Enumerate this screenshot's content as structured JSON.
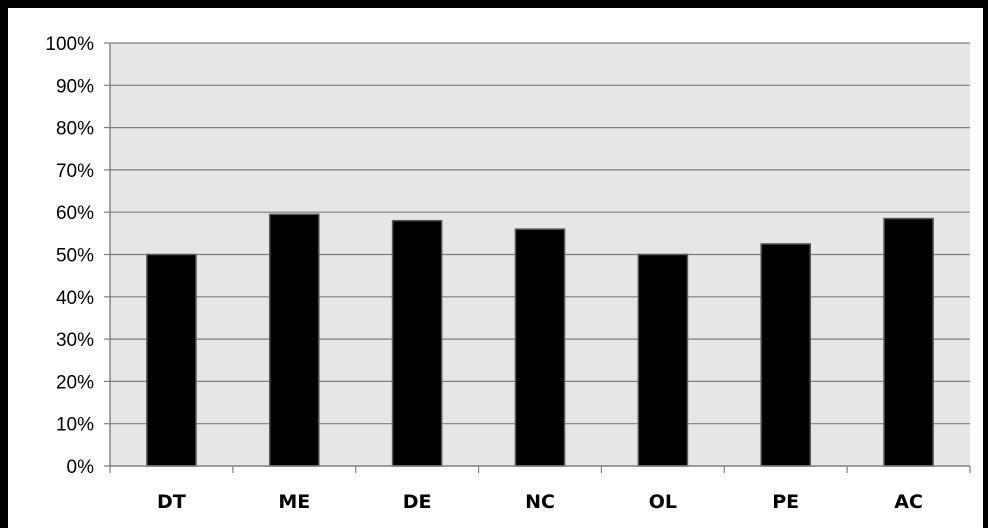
{
  "chart_data": {
    "type": "bar",
    "categories": [
      "DT",
      "ME",
      "DE",
      "NC",
      "OL",
      "PE",
      "AC"
    ],
    "values": [
      50,
      59.5,
      58,
      56,
      50,
      52.5,
      58.5
    ],
    "y_ticks": [
      "0%",
      "10%",
      "20%",
      "30%",
      "40%",
      "50%",
      "60%",
      "70%",
      "80%",
      "90%",
      "100%"
    ],
    "ylim": [
      0,
      100
    ],
    "grid": true,
    "legend": "none",
    "title": "",
    "xlabel": "",
    "ylabel": "",
    "colors": {
      "bar_fill": "#000000",
      "bar_stroke": "#5a5a5a",
      "plot_background": "#e6e6e6",
      "gridline": "#7f7f7f",
      "axis": "#7f7f7f",
      "frame": "#000000"
    }
  }
}
